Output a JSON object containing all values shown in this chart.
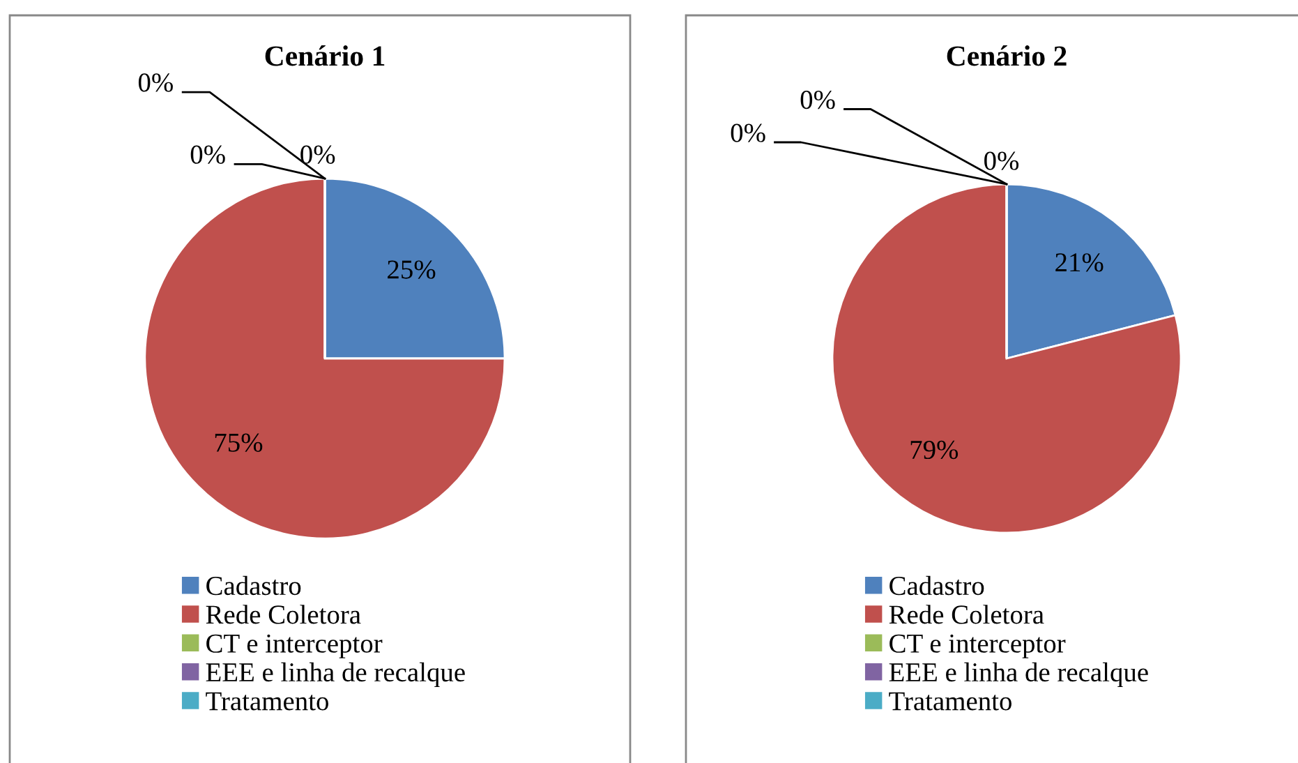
{
  "chart_data": [
    {
      "type": "pie",
      "title": "Cenário 1",
      "categories": [
        "Cadastro",
        "Rede Coletora",
        "CT e interceptor",
        "EEE e linha de recalque",
        "Tratamento"
      ],
      "values": [
        25,
        75,
        0,
        0,
        0
      ],
      "value_labels": [
        "25%",
        "75%",
        "0%",
        "0%",
        "0%"
      ],
      "colors": [
        "#4f81bd",
        "#c0504d",
        "#9bbb59",
        "#8064a2",
        "#4bacc6"
      ],
      "legend": "bottom"
    },
    {
      "type": "pie",
      "title": "Cenário 2",
      "categories": [
        "Cadastro",
        "Rede Coletora",
        "CT e interceptor",
        "EEE e linha de recalque",
        "Tratamento"
      ],
      "values": [
        21,
        79,
        0,
        0,
        0
      ],
      "value_labels": [
        "21%",
        "79%",
        "0%",
        "0%",
        "0%"
      ],
      "colors": [
        "#4f81bd",
        "#c0504d",
        "#9bbb59",
        "#8064a2",
        "#4bacc6"
      ],
      "legend": "bottom"
    }
  ]
}
